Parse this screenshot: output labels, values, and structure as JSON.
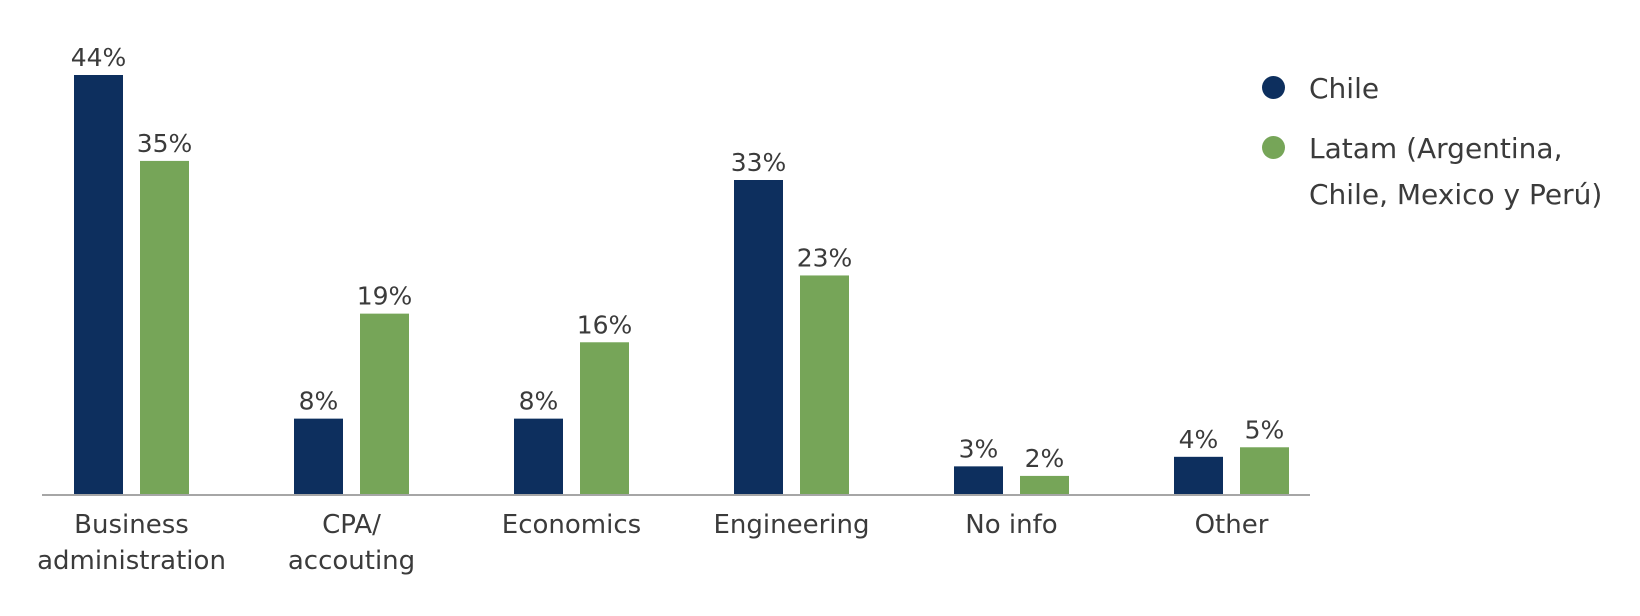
{
  "chart_data": {
    "type": "bar",
    "categories": [
      [
        "Business",
        "administration"
      ],
      [
        "CPA/",
        "accouting"
      ],
      [
        "Economics"
      ],
      [
        "Engineering"
      ],
      [
        "No info"
      ],
      [
        "Other"
      ]
    ],
    "series": [
      {
        "name": "Chile",
        "color": "#0d2f5e",
        "values": [
          44,
          8,
          8,
          33,
          3,
          4
        ],
        "labels": [
          "44%",
          "8%",
          "8%",
          "33%",
          "3%",
          "4%"
        ]
      },
      {
        "name": "Latam (Argentina, Chile, Mexico y Perú)",
        "color": "#76a558",
        "values": [
          35,
          19,
          16,
          23,
          2,
          5
        ],
        "labels": [
          "35%",
          "19%",
          "16%",
          "23%",
          "2%",
          "5%"
        ]
      }
    ],
    "ylim": [
      0,
      44
    ],
    "grid": false,
    "legend_placement": "top-right"
  },
  "legend": {
    "chile": "Chile",
    "latam": "Latam (Argentina, Chile, Mexico y Perú)"
  }
}
